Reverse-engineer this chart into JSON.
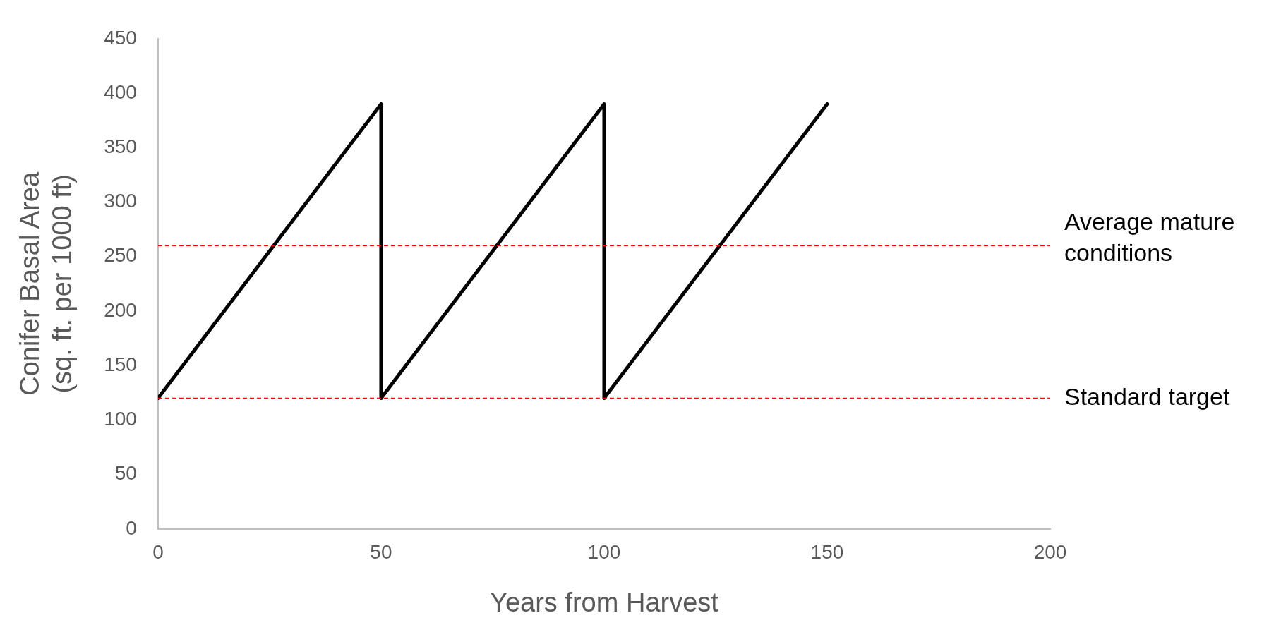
{
  "chart_data": {
    "type": "line",
    "xlabel": "Years from Harvest",
    "ylabel": "Conifer Basal Area\n(sq. ft. per 1000 ft)",
    "xlim": [
      0,
      200
    ],
    "xticks": [
      0,
      50,
      100,
      150,
      200
    ],
    "ylim": [
      0,
      450
    ],
    "yticks": [
      0,
      50,
      100,
      150,
      200,
      250,
      300,
      350,
      400,
      450
    ],
    "grid": false,
    "legend": false,
    "series": [
      {
        "color": "#000000",
        "x": [
          0,
          50,
          50,
          100,
          100,
          150
        ],
        "values": [
          120,
          390,
          120,
          390,
          120,
          390
        ]
      }
    ],
    "ref_lines": [
      {
        "axis": "y",
        "value": 260,
        "label": "Average mature\nconditions",
        "color": "#ff0000",
        "line_style": "dashed"
      },
      {
        "axis": "y",
        "value": 120,
        "label": "Standard target",
        "color": "#ff0000",
        "line_style": "dashed"
      }
    ]
  }
}
